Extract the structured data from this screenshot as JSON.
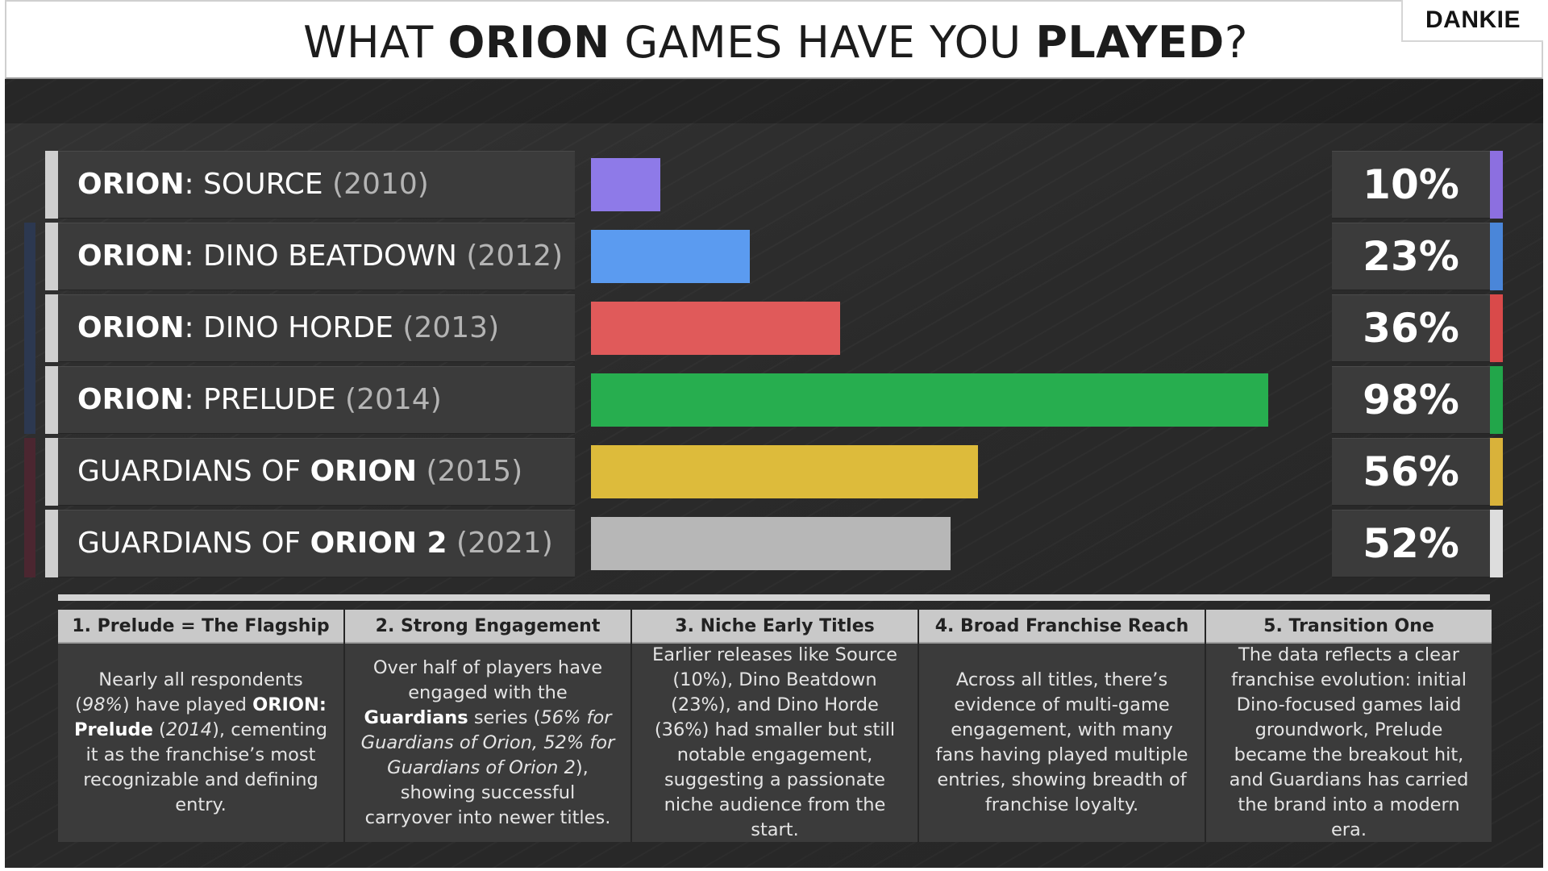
{
  "header": {
    "title_parts": [
      "WHAT ",
      "ORION",
      " GAMES HAVE YOU ",
      "PLAYED",
      "?"
    ],
    "logo": "DANKIE"
  },
  "chart_data": {
    "type": "bar",
    "orientation": "horizontal",
    "title": "WHAT ORION GAMES HAVE YOU PLAYED?",
    "categories": [
      "ORION: SOURCE (2010)",
      "ORION: DINO BEATDOWN (2012)",
      "ORION: DINO HORDE (2013)",
      "ORION: PRELUDE (2014)",
      "GUARDIANS OF ORION (2015)",
      "GUARDIANS OF ORION 2 (2021)"
    ],
    "values": [
      10,
      23,
      36,
      98,
      56,
      52
    ],
    "value_labels": [
      "10%",
      "23%",
      "36%",
      "98%",
      "56%",
      "52%"
    ],
    "colors": [
      "#8e7ae8",
      "#5b9bf0",
      "#e05a5a",
      "#27ae4f",
      "#ddbb3b",
      "#b7b7b7"
    ],
    "accent_colors": [
      "#8c6fe0",
      "#4a86d9",
      "#d94a4a",
      "#22a64a",
      "#d9b23a",
      "#dddddd"
    ],
    "xlim": [
      0,
      100
    ],
    "grid": false,
    "legend": "none"
  },
  "rows": [
    {
      "parts": [
        {
          "t": "ORION",
          "s": "b"
        },
        {
          "t": ": SOURCE ",
          "s": "n"
        },
        {
          "t": "(2010)",
          "s": "yr"
        }
      ]
    },
    {
      "parts": [
        {
          "t": "ORION",
          "s": "b"
        },
        {
          "t": ": DINO BEATDOWN ",
          "s": "n"
        },
        {
          "t": "(2012)",
          "s": "yr"
        }
      ]
    },
    {
      "parts": [
        {
          "t": "ORION",
          "s": "b"
        },
        {
          "t": ": DINO HORDE ",
          "s": "n"
        },
        {
          "t": "(2013)",
          "s": "yr"
        }
      ]
    },
    {
      "parts": [
        {
          "t": "ORION",
          "s": "b"
        },
        {
          "t": ": PRELUDE ",
          "s": "n"
        },
        {
          "t": "(2014)",
          "s": "yr"
        }
      ]
    },
    {
      "parts": [
        {
          "t": "GUARDIANS OF ",
          "s": "n"
        },
        {
          "t": "ORION",
          "s": "b"
        },
        {
          "t": " (2015)",
          "s": "yr"
        }
      ]
    },
    {
      "parts": [
        {
          "t": "GUARDIANS OF ",
          "s": "n"
        },
        {
          "t": "ORION 2",
          "s": "b"
        },
        {
          "t": " (2021)",
          "s": "yr"
        }
      ]
    }
  ],
  "group_colors": [
    "#2c3850",
    "#4b2630"
  ],
  "notes": [
    {
      "title": "1. Prelude = The Flagship",
      "parts": [
        {
          "t": "Nearly all respondents (",
          "s": "n"
        },
        {
          "t": "98%",
          "s": "i"
        },
        {
          "t": ") have played ",
          "s": "n"
        },
        {
          "t": "ORION: Prelude",
          "s": "b"
        },
        {
          "t": " (",
          "s": "n"
        },
        {
          "t": "2014",
          "s": "i"
        },
        {
          "t": "), cementing it as the franchise’s most recognizable and defining entry.",
          "s": "n"
        }
      ]
    },
    {
      "title": "2. Strong Engagement",
      "parts": [
        {
          "t": "Over half of players have engaged with the ",
          "s": "n"
        },
        {
          "t": "Guardians",
          "s": "b"
        },
        {
          "t": " series (",
          "s": "n"
        },
        {
          "t": "56% for Guardians of Orion, 52% for Guardians of Orion 2",
          "s": "i"
        },
        {
          "t": "), showing successful carryover into newer titles.",
          "s": "n"
        }
      ]
    },
    {
      "title": "3. Niche Early Titles",
      "parts": [
        {
          "t": "Earlier releases like Source (10%), Dino Beatdown (23%), and Dino Horde (36%) had smaller but still notable engagement, suggesting a passionate niche audience from the start.",
          "s": "n"
        }
      ]
    },
    {
      "title": "4. Broad Franchise Reach",
      "parts": [
        {
          "t": "Across all titles, there’s evidence of multi-game engagement, with many fans having played multiple entries, showing breadth of franchise loyalty.",
          "s": "n"
        }
      ]
    },
    {
      "title": "5. Transition One",
      "parts": [
        {
          "t": "The data reflects a clear franchise evolution: initial Dino-focused games laid groundwork, Prelude became the breakout hit, and Guardians has carried the brand into a modern era.",
          "s": "n"
        }
      ]
    }
  ]
}
